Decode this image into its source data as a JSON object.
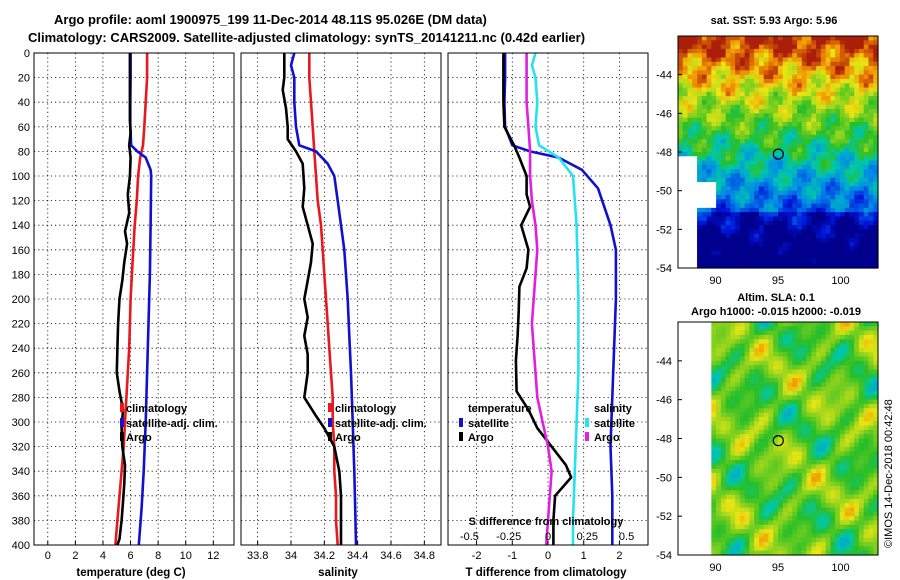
{
  "titles": {
    "line1": "Argo profile: aoml 1900975_199 11-Dec-2014 48.11S 95.026E (DM data)",
    "line2": "Climatology: CARS2009. Satellite-adjusted climatology: synTS_20141211.nc (0.42d earlier)"
  },
  "colors": {
    "climatology": "#e8181c",
    "satellite": "#1010d0",
    "argo": "#000000",
    "sal_satellite": "#26e2f0",
    "sal_argo": "#e020e0"
  },
  "depth_ticks": [
    "0",
    "20",
    "40",
    "60",
    "80",
    "100",
    "120",
    "140",
    "160",
    "180",
    "200",
    "220",
    "240",
    "260",
    "280",
    "300",
    "320",
    "340",
    "360",
    "380",
    "400"
  ],
  "chart_data": [
    {
      "type": "line",
      "title": "",
      "xlabel": "temperature (deg C)",
      "ylabel": "depth",
      "xlim": [
        -1,
        13.5
      ],
      "ylim": [
        400,
        0
      ],
      "x_ticks": [
        "0",
        "2",
        "4",
        "6",
        "8",
        "10",
        "12"
      ],
      "x_tick_values": [
        0,
        2,
        4,
        6,
        8,
        10,
        12
      ],
      "legend": [
        "climatology",
        "satellite-adj. clim.",
        "Argo"
      ],
      "legend_position": "lower-right",
      "series": [
        {
          "name": "climatology",
          "color_key": "climatology",
          "points": [
            [
              7.2,
              0
            ],
            [
              7.2,
              20
            ],
            [
              7.1,
              40
            ],
            [
              7.0,
              60
            ],
            [
              6.9,
              75
            ],
            [
              6.7,
              85
            ],
            [
              6.55,
              100
            ],
            [
              6.45,
              120
            ],
            [
              6.3,
              140
            ],
            [
              6.2,
              160
            ],
            [
              6.1,
              180
            ],
            [
              6.0,
              200
            ],
            [
              5.95,
              220
            ],
            [
              5.9,
              240
            ],
            [
              5.8,
              260
            ],
            [
              5.7,
              280
            ],
            [
              5.6,
              300
            ],
            [
              5.5,
              320
            ],
            [
              5.35,
              340
            ],
            [
              5.2,
              360
            ],
            [
              5.05,
              380
            ],
            [
              4.9,
              400
            ]
          ]
        },
        {
          "name": "satellite-adj. clim.",
          "color_key": "satellite",
          "points": [
            [
              6.0,
              0
            ],
            [
              6.0,
              20
            ],
            [
              5.98,
              40
            ],
            [
              5.98,
              60
            ],
            [
              6.05,
              75
            ],
            [
              6.5,
              80
            ],
            [
              7.1,
              85
            ],
            [
              7.45,
              95
            ],
            [
              7.5,
              100
            ],
            [
              7.45,
              140
            ],
            [
              7.4,
              180
            ],
            [
              7.3,
              220
            ],
            [
              7.2,
              260
            ],
            [
              7.1,
              300
            ],
            [
              6.95,
              340
            ],
            [
              6.8,
              370
            ],
            [
              6.6,
              400
            ]
          ]
        },
        {
          "name": "Argo",
          "color_key": "argo",
          "points": [
            [
              5.95,
              0
            ],
            [
              5.95,
              20
            ],
            [
              5.95,
              40
            ],
            [
              5.95,
              55
            ],
            [
              6.0,
              65
            ],
            [
              5.9,
              75
            ],
            [
              6.0,
              85
            ],
            [
              5.95,
              100
            ],
            [
              5.8,
              115
            ],
            [
              5.9,
              130
            ],
            [
              5.6,
              145
            ],
            [
              5.75,
              155
            ],
            [
              5.55,
              170
            ],
            [
              5.4,
              185
            ],
            [
              5.2,
              200
            ],
            [
              5.1,
              220
            ],
            [
              5.05,
              240
            ],
            [
              5.0,
              260
            ],
            [
              5.2,
              275
            ],
            [
              5.45,
              290
            ],
            [
              5.35,
              305
            ],
            [
              5.4,
              320
            ],
            [
              5.6,
              335
            ],
            [
              5.55,
              350
            ],
            [
              5.45,
              365
            ],
            [
              5.35,
              380
            ],
            [
              5.2,
              395
            ],
            [
              5.05,
              400
            ]
          ]
        }
      ]
    },
    {
      "type": "line",
      "title": "",
      "xlabel": "salinity",
      "ylabel": "depth",
      "xlim": [
        33.7,
        34.9
      ],
      "ylim": [
        400,
        0
      ],
      "x_ticks": [
        "33.8",
        "34",
        "34.2",
        "34.4",
        "34.6",
        "34.8"
      ],
      "x_tick_values": [
        33.8,
        34.0,
        34.2,
        34.4,
        34.6,
        34.8
      ],
      "legend": [
        "climatology",
        "satellite-adj. clim.",
        "Argo"
      ],
      "legend_position": "lower-right",
      "series": [
        {
          "name": "climatology",
          "color_key": "climatology",
          "points": [
            [
              34.11,
              0
            ],
            [
              34.11,
              20
            ],
            [
              34.12,
              40
            ],
            [
              34.13,
              60
            ],
            [
              34.14,
              80
            ],
            [
              34.15,
              100
            ],
            [
              34.16,
              120
            ],
            [
              34.18,
              140
            ],
            [
              34.19,
              160
            ],
            [
              34.2,
              180
            ],
            [
              34.21,
              200
            ],
            [
              34.22,
              220
            ],
            [
              34.23,
              240
            ],
            [
              34.24,
              260
            ],
            [
              34.25,
              280
            ],
            [
              34.25,
              300
            ],
            [
              34.26,
              320
            ],
            [
              34.26,
              340
            ],
            [
              34.27,
              360
            ],
            [
              34.27,
              380
            ],
            [
              34.28,
              400
            ]
          ]
        },
        {
          "name": "satellite-adj. clim.",
          "color_key": "satellite",
          "points": [
            [
              34.02,
              0
            ],
            [
              34.0,
              10
            ],
            [
              34.02,
              20
            ],
            [
              34.02,
              40
            ],
            [
              34.03,
              60
            ],
            [
              34.05,
              75
            ],
            [
              34.15,
              80
            ],
            [
              34.22,
              90
            ],
            [
              34.26,
              100
            ],
            [
              34.28,
              120
            ],
            [
              34.3,
              140
            ],
            [
              34.32,
              160
            ],
            [
              34.33,
              180
            ],
            [
              34.34,
              200
            ],
            [
              34.35,
              230
            ],
            [
              34.36,
              260
            ],
            [
              34.37,
              300
            ],
            [
              34.38,
              340
            ],
            [
              34.385,
              370
            ],
            [
              34.39,
              400
            ]
          ]
        },
        {
          "name": "Argo",
          "color_key": "argo",
          "points": [
            [
              33.96,
              0
            ],
            [
              33.96,
              20
            ],
            [
              33.95,
              30
            ],
            [
              33.97,
              45
            ],
            [
              33.98,
              60
            ],
            [
              33.98,
              70
            ],
            [
              34.03,
              80
            ],
            [
              34.07,
              90
            ],
            [
              34.08,
              110
            ],
            [
              34.07,
              125
            ],
            [
              34.1,
              140
            ],
            [
              34.13,
              155
            ],
            [
              34.12,
              170
            ],
            [
              34.1,
              185
            ],
            [
              34.08,
              200
            ],
            [
              34.1,
              215
            ],
            [
              34.08,
              230
            ],
            [
              34.1,
              245
            ],
            [
              34.1,
              260
            ],
            [
              34.08,
              280
            ],
            [
              34.15,
              295
            ],
            [
              34.2,
              305
            ],
            [
              34.26,
              320
            ],
            [
              34.29,
              340
            ],
            [
              34.3,
              360
            ],
            [
              34.3,
              380
            ],
            [
              34.3,
              400
            ]
          ]
        }
      ]
    },
    {
      "type": "line",
      "title": "",
      "xlabel": "T difference from climatology",
      "ylabel": "depth",
      "xlim": [
        -2.8,
        2.8
      ],
      "ylim": [
        400,
        0
      ],
      "x_ticks": [
        "-2",
        "-1",
        "0",
        "1",
        "2"
      ],
      "x_tick_values": [
        -2,
        -1,
        0,
        1,
        2
      ],
      "secondary_axis_label": "S difference from climatology",
      "secondary_x_ticks": [
        "-0.5",
        "-0.25",
        "0",
        "0.25",
        "0.5"
      ],
      "secondary_x_tick_values": [
        -2.2,
        -1.1,
        0,
        1.1,
        2.2
      ],
      "legend_temperature_title": "temperature",
      "legend_salinity_title": "salinity",
      "legend": [
        "satellite",
        "Argo",
        "satellite",
        "Argo"
      ],
      "legend_position": "lower-center",
      "series": [
        {
          "name": "temperature satellite",
          "color_key": "satellite",
          "points": [
            [
              -1.2,
              0
            ],
            [
              -1.2,
              20
            ],
            [
              -1.22,
              40
            ],
            [
              -1.2,
              60
            ],
            [
              -1.0,
              75
            ],
            [
              -0.5,
              80
            ],
            [
              0.3,
              85
            ],
            [
              0.95,
              95
            ],
            [
              1.4,
              110
            ],
            [
              1.75,
              140
            ],
            [
              1.9,
              160
            ],
            [
              1.9,
              200
            ],
            [
              1.85,
              240
            ],
            [
              1.8,
              280
            ],
            [
              1.75,
              320
            ],
            [
              1.8,
              360
            ],
            [
              1.8,
              400
            ]
          ]
        },
        {
          "name": "temperature Argo",
          "color_key": "argo",
          "points": [
            [
              -1.25,
              0
            ],
            [
              -1.25,
              20
            ],
            [
              -1.25,
              40
            ],
            [
              -1.22,
              60
            ],
            [
              -0.95,
              75
            ],
            [
              -0.8,
              85
            ],
            [
              -0.6,
              100
            ],
            [
              -0.6,
              115
            ],
            [
              -0.5,
              125
            ],
            [
              -0.75,
              140
            ],
            [
              -0.55,
              160
            ],
            [
              -0.6,
              175
            ],
            [
              -0.8,
              190
            ],
            [
              -0.82,
              210
            ],
            [
              -0.85,
              230
            ],
            [
              -0.9,
              250
            ],
            [
              -0.88,
              275
            ],
            [
              -0.55,
              290
            ],
            [
              -0.3,
              305
            ],
            [
              0.1,
              320
            ],
            [
              0.5,
              335
            ],
            [
              0.65,
              345
            ],
            [
              0.2,
              360
            ],
            [
              0.15,
              380
            ],
            [
              0.15,
              400
            ]
          ]
        },
        {
          "name": "salinity satellite",
          "color_key": "sal_satellite",
          "points": [
            [
              -0.35,
              0
            ],
            [
              -0.45,
              10
            ],
            [
              -0.35,
              20
            ],
            [
              -0.3,
              40
            ],
            [
              -0.35,
              60
            ],
            [
              -0.25,
              75
            ],
            [
              0.3,
              85
            ],
            [
              0.7,
              100
            ],
            [
              0.8,
              140
            ],
            [
              0.85,
              200
            ],
            [
              0.85,
              260
            ],
            [
              0.8,
              300
            ],
            [
              0.75,
              340
            ],
            [
              0.7,
              380
            ],
            [
              0.7,
              400
            ]
          ]
        },
        {
          "name": "salinity Argo",
          "color_key": "sal_argo",
          "points": [
            [
              -0.6,
              0
            ],
            [
              -0.6,
              20
            ],
            [
              -0.6,
              40
            ],
            [
              -0.55,
              60
            ],
            [
              -0.5,
              80
            ],
            [
              -0.5,
              100
            ],
            [
              -0.45,
              120
            ],
            [
              -0.35,
              140
            ],
            [
              -0.3,
              160
            ],
            [
              -0.35,
              180
            ],
            [
              -0.4,
              200
            ],
            [
              -0.45,
              220
            ],
            [
              -0.4,
              240
            ],
            [
              -0.35,
              260
            ],
            [
              -0.3,
              280
            ],
            [
              -0.15,
              300
            ],
            [
              0.0,
              320
            ],
            [
              0.1,
              340
            ],
            [
              0.05,
              360
            ],
            [
              0.0,
              380
            ],
            [
              -0.05,
              400
            ]
          ]
        }
      ]
    },
    {
      "type": "heatmap",
      "title": "sat. SST: 5.93 Argo: 5.96",
      "xlim": [
        87,
        103
      ],
      "ylim": [
        -54,
        -42
      ],
      "x_ticks": [
        "90",
        "95",
        "100"
      ],
      "x_tick_values": [
        90,
        95,
        100
      ],
      "y_ticks": [
        "-44",
        "-46",
        "-48",
        "-50",
        "-52",
        "-54"
      ],
      "y_tick_values": [
        -44,
        -46,
        -48,
        -50,
        -52,
        -54
      ],
      "marker": [
        95.026,
        -48.11
      ]
    },
    {
      "type": "heatmap",
      "title": "Altim. SLA: 0.1",
      "subtitle": "Argo h1000: -0.015 h2000: -0.019",
      "xlim": [
        87,
        103
      ],
      "ylim": [
        -54,
        -42
      ],
      "x_ticks": [
        "90",
        "95",
        "100"
      ],
      "x_tick_values": [
        90,
        95,
        100
      ],
      "y_ticks": [
        "-44",
        "-46",
        "-48",
        "-50",
        "-52",
        "-54"
      ],
      "y_tick_values": [
        -44,
        -46,
        -48,
        -50,
        -52,
        -54
      ],
      "marker": [
        95.026,
        -48.11
      ]
    }
  ],
  "credit": "©IMOS 14-Dec-2018 00:42:48"
}
